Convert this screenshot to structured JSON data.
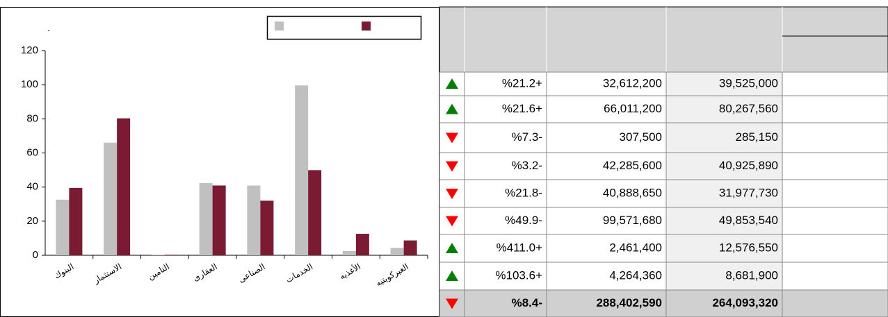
{
  "chart_data": {
    "type": "bar",
    "title": ".",
    "categories": [
      "البنوك",
      "الاستثمار",
      "التامين",
      "العقارى",
      "الصناعى",
      "الخدمات",
      "الأغذيه",
      "الغيركويتيه"
    ],
    "series": [
      {
        "color": "#c0c0c0",
        "values": [
          32.6,
          66.0,
          0.3,
          42.3,
          40.9,
          99.6,
          2.5,
          4.3
        ]
      },
      {
        "color": "#7b1a33",
        "values": [
          39.5,
          80.3,
          0.3,
          40.9,
          32.0,
          49.9,
          12.6,
          8.7
        ]
      }
    ],
    "ylim": [
      0,
      120
    ],
    "yticks": [
      0,
      20,
      40,
      60,
      80,
      100,
      120
    ]
  },
  "table": {
    "rows": [
      {
        "trend": "up",
        "cells": [
          "%21.2+",
          "32,612,200",
          "39,525,000"
        ]
      },
      {
        "trend": "up",
        "cells": [
          "%21.6+",
          "66,011,200",
          "80,267,560"
        ]
      },
      {
        "trend": "down",
        "cells": [
          "%7.3-",
          "307,500",
          "285,150"
        ]
      },
      {
        "trend": "down",
        "cells": [
          "%3.2-",
          "42,285,600",
          "40,925,890"
        ]
      },
      {
        "trend": "down",
        "cells": [
          "%21.8-",
          "40,888,650",
          "31,977,730"
        ]
      },
      {
        "trend": "down",
        "cells": [
          "%49.9-",
          "99,571,680",
          "49,853,540"
        ]
      },
      {
        "trend": "up",
        "cells": [
          "%411.0+",
          "2,461,400",
          "12,576,550"
        ]
      },
      {
        "trend": "up",
        "cells": [
          "%103.6+",
          "4,264,360",
          "8,681,900"
        ]
      }
    ],
    "total": {
      "trend": "down",
      "cells": [
        "%8.4-",
        "288,402,590",
        "264,093,320"
      ]
    }
  }
}
